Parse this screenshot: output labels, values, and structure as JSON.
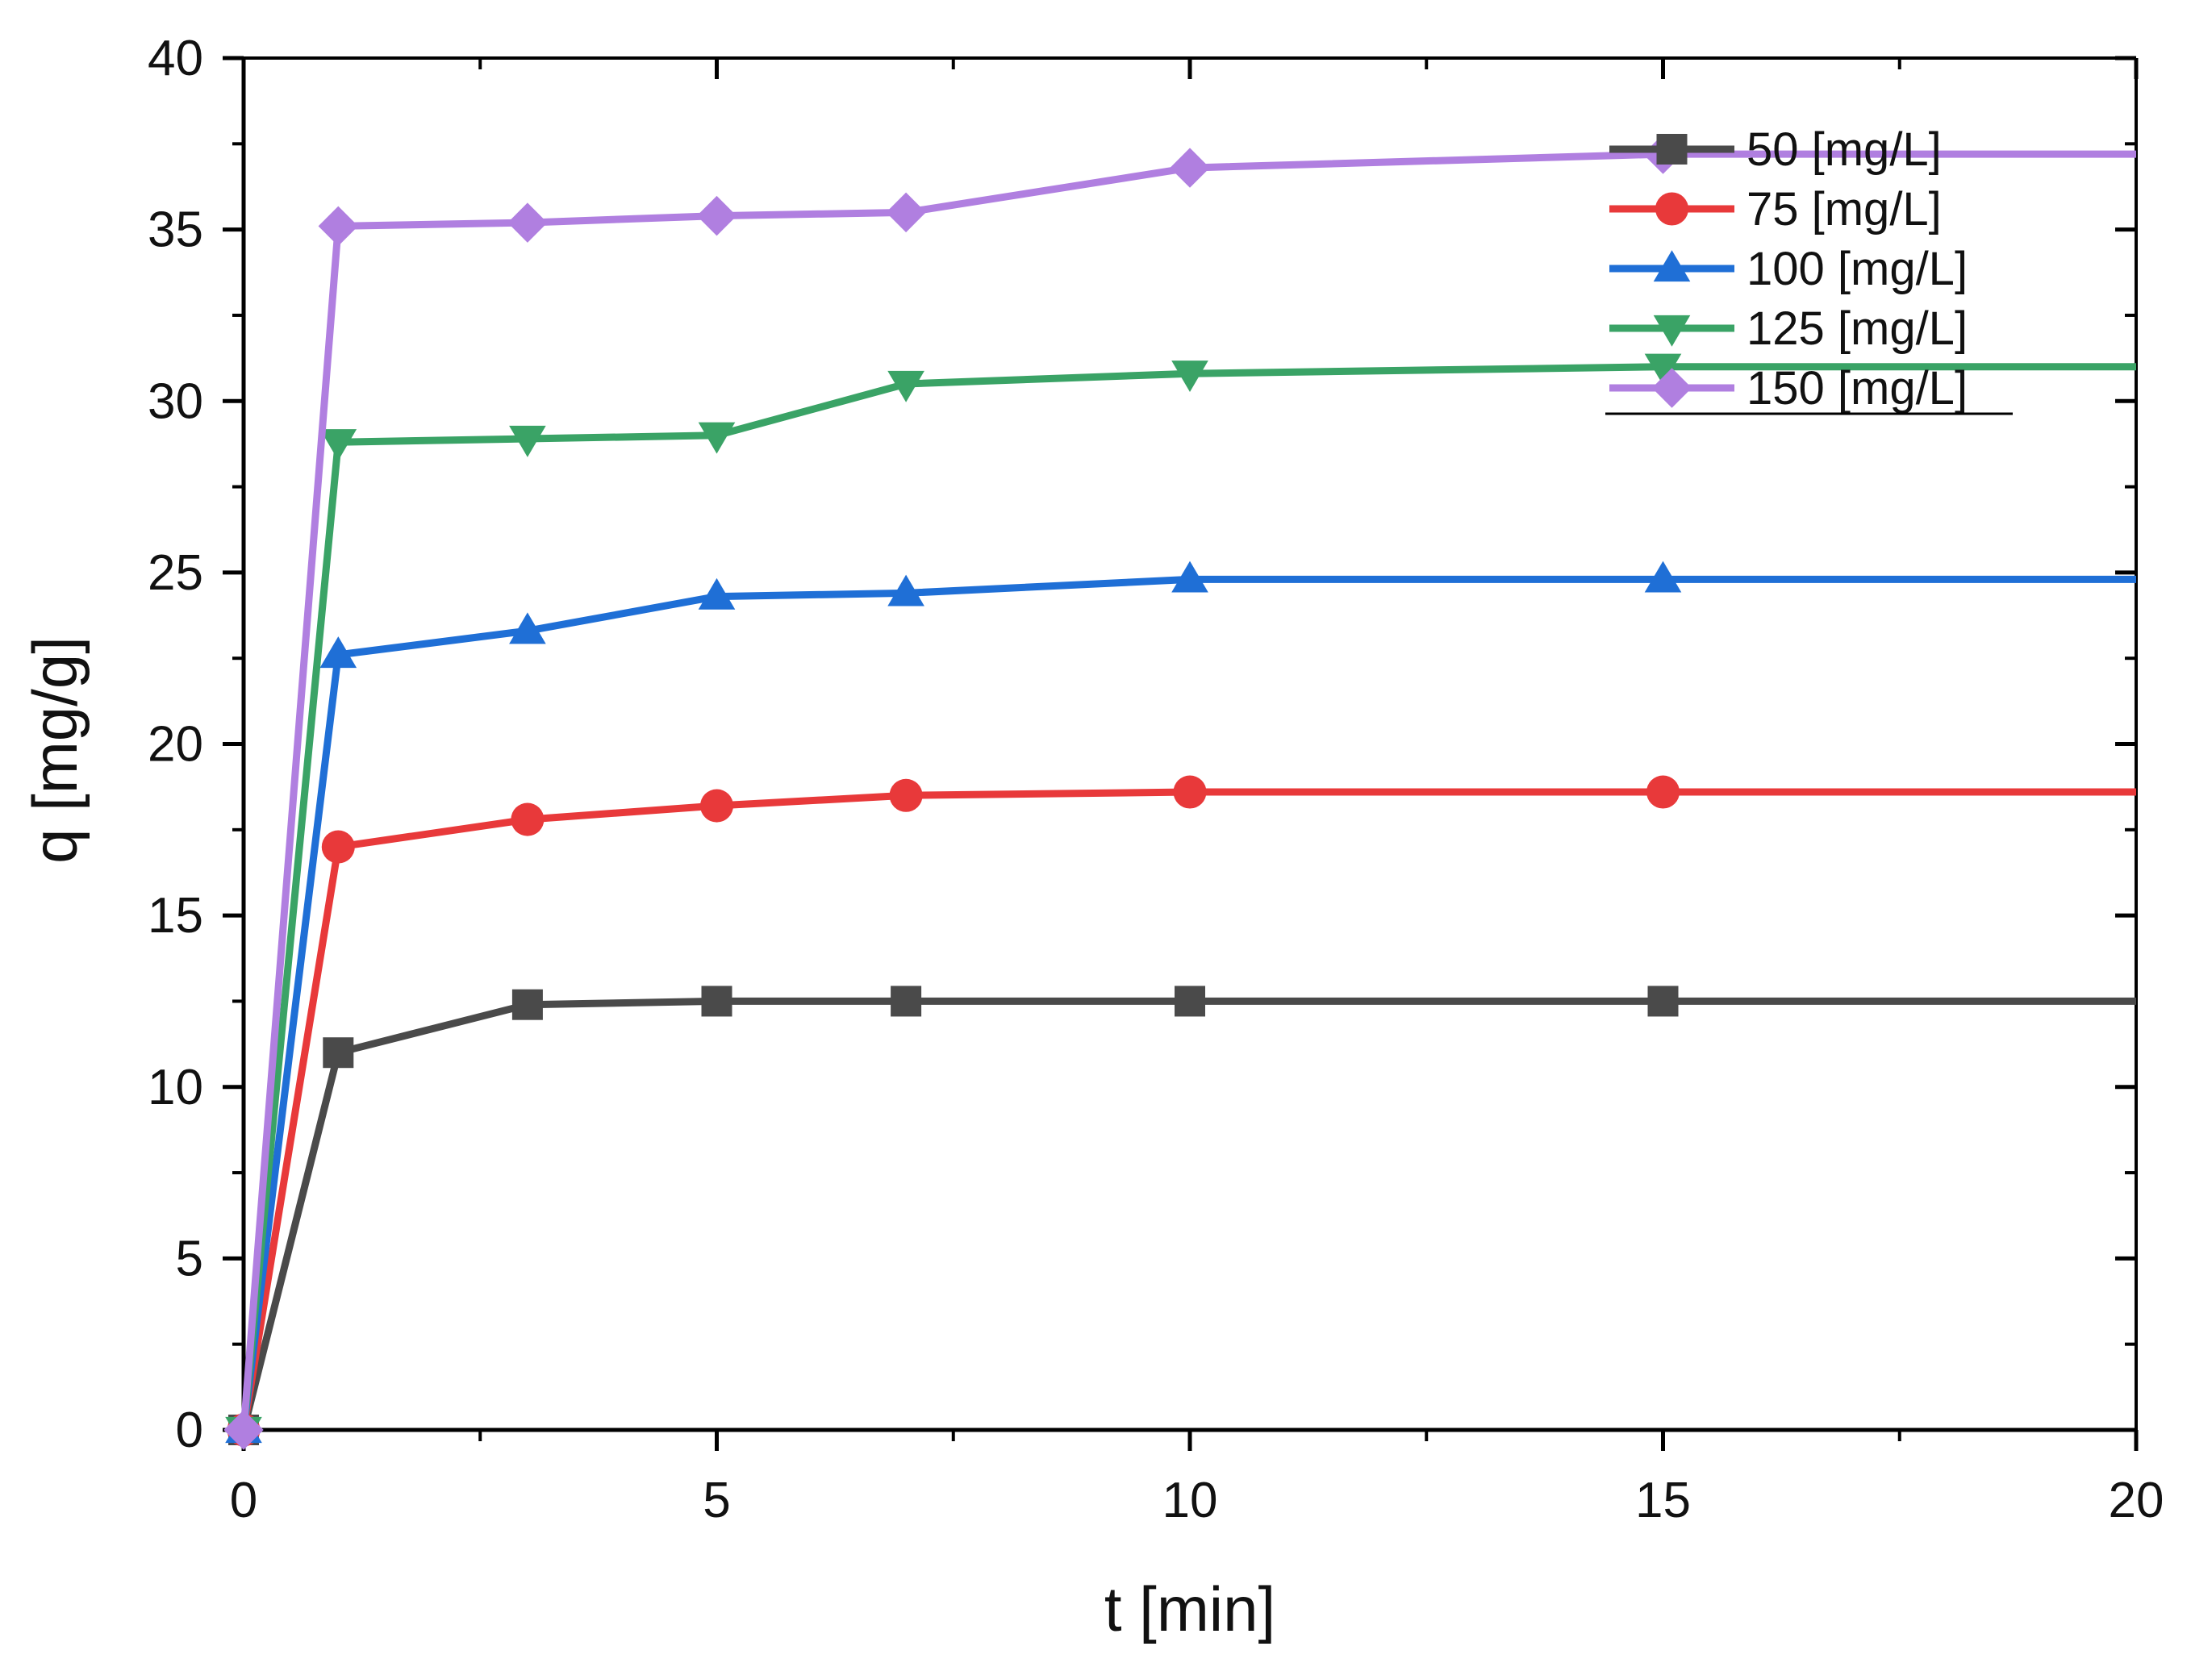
{
  "chart_data": {
    "type": "line",
    "title": "",
    "xlabel": "t [min]",
    "ylabel": "q [mg/g]",
    "xlim": [
      0,
      20
    ],
    "ylim": [
      0,
      40
    ],
    "xticks": [
      0,
      5,
      10,
      15,
      20
    ],
    "yticks": [
      0,
      5,
      10,
      15,
      20,
      25,
      30,
      35,
      40
    ],
    "x_minor_step": 2.5,
    "y_minor_step": 2.5,
    "grid": false,
    "legend_position": "top-right",
    "series": [
      {
        "name": "50 [mg/L]",
        "color": "#4a4a4a",
        "marker": "square",
        "x": [
          0,
          1,
          3,
          5,
          7,
          10,
          15,
          20
        ],
        "y": [
          0,
          11.0,
          12.4,
          12.5,
          12.5,
          12.5,
          12.5,
          12.5
        ],
        "marker_x": [
          0,
          1,
          3,
          5,
          7,
          10,
          15
        ]
      },
      {
        "name": "75 [mg/L]",
        "color": "#e8393a",
        "marker": "circle",
        "x": [
          0,
          1,
          3,
          5,
          7,
          10,
          15,
          20
        ],
        "y": [
          0,
          17.0,
          17.8,
          18.2,
          18.5,
          18.6,
          18.6,
          18.6
        ],
        "marker_x": [
          0,
          1,
          3,
          5,
          7,
          10,
          15
        ]
      },
      {
        "name": "100 [mg/L]",
        "color": "#1f6fd6",
        "marker": "triangle-up",
        "x": [
          0,
          1,
          3,
          5,
          7,
          10,
          15,
          20
        ],
        "y": [
          0,
          22.6,
          23.3,
          24.3,
          24.4,
          24.8,
          24.8,
          24.8
        ],
        "marker_x": [
          0,
          1,
          3,
          5,
          7,
          10,
          15
        ]
      },
      {
        "name": "125 [mg/L]",
        "color": "#3aa366",
        "marker": "triangle-down",
        "x": [
          0,
          1,
          3,
          5,
          7,
          10,
          15,
          20
        ],
        "y": [
          0,
          28.8,
          28.9,
          29.0,
          30.5,
          30.8,
          31.0,
          31.0
        ],
        "marker_x": [
          0,
          1,
          3,
          5,
          7,
          10,
          15
        ]
      },
      {
        "name": "150 [mg/L]",
        "color": "#b07fe0",
        "marker": "diamond",
        "x": [
          0,
          1,
          3,
          5,
          7,
          10,
          15,
          20
        ],
        "y": [
          0,
          35.1,
          35.2,
          35.4,
          35.5,
          36.8,
          37.2,
          37.2
        ],
        "marker_x": [
          0,
          1,
          3,
          5,
          7,
          10,
          15
        ]
      }
    ]
  }
}
